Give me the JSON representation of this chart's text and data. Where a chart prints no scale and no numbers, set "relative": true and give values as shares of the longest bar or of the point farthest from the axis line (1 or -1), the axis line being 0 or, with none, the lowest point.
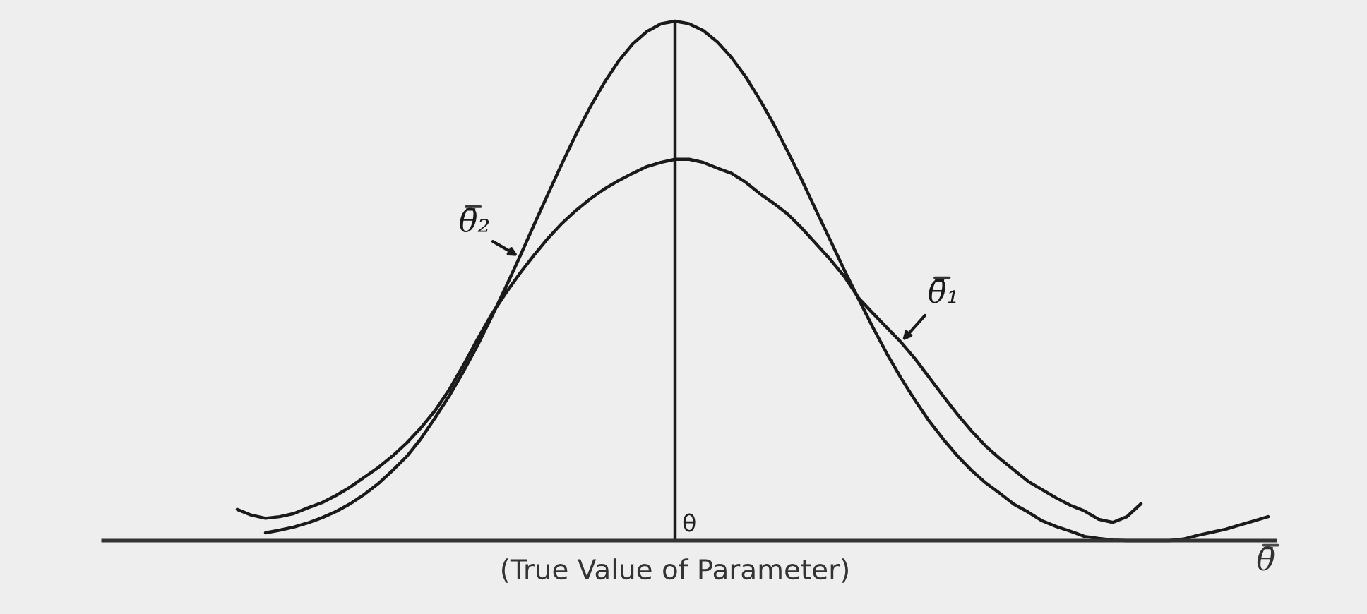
{
  "chart_data": {
    "type": "line",
    "relative": true,
    "xlabel": "θ̄",
    "categories": [
      null,
      null,
      null,
      null,
      null,
      null,
      null,
      null,
      null,
      null,
      null,
      null,
      null,
      null,
      null,
      null,
      null,
      null,
      null,
      null,
      null,
      null,
      null,
      null,
      null,
      null,
      null,
      null,
      null,
      null,
      null,
      null,
      null,
      null,
      null,
      null,
      null,
      null,
      null,
      null,
      null,
      null,
      null,
      null,
      null,
      null,
      null,
      null,
      null,
      null,
      null,
      null,
      null,
      null,
      null,
      null,
      null,
      null,
      null,
      null,
      null,
      null,
      null,
      null,
      null,
      null,
      null,
      null,
      null,
      null,
      null,
      null,
      null,
      null,
      null,
      null,
      null,
      null,
      null,
      null,
      null,
      null,
      null
    ],
    "series": [
      {
        "name": "θ̄₁",
        "color": "#1a1a1a",
        "values": [
          null,
          null,
          null,
          null,
          null,
          null,
          null,
          null,
          null,
          0.06,
          0.049,
          0.043,
          0.046,
          0.052,
          0.063,
          0.073,
          0.087,
          0.103,
          0.122,
          0.141,
          0.163,
          0.188,
          0.217,
          0.25,
          0.29,
          0.337,
          0.387,
          0.435,
          0.476,
          0.514,
          0.549,
          0.582,
          0.611,
          0.636,
          0.658,
          0.677,
          0.693,
          0.707,
          0.72,
          0.728,
          0.734,
          0.734,
          0.728,
          0.717,
          0.707,
          0.69,
          0.668,
          0.649,
          0.628,
          0.601,
          0.571,
          0.541,
          0.508,
          0.467,
          0.438,
          0.41,
          0.382,
          0.35,
          0.314,
          0.278,
          0.243,
          0.211,
          0.182,
          0.158,
          0.136,
          0.114,
          0.098,
          0.082,
          0.068,
          0.057,
          0.041,
          0.035,
          0.046,
          0.071,
          null,
          null,
          null,
          null,
          null,
          null,
          null,
          null,
          null
        ]
      },
      {
        "name": "θ̄₂",
        "color": "#1a1a1a",
        "values": [
          null,
          null,
          null,
          null,
          null,
          null,
          null,
          null,
          null,
          null,
          null,
          0.015,
          0.02,
          0.026,
          0.034,
          0.044,
          0.056,
          0.071,
          0.089,
          0.11,
          0.135,
          0.162,
          0.196,
          0.236,
          0.278,
          0.325,
          0.375,
          0.43,
          0.487,
          0.546,
          0.607,
          0.667,
          0.726,
          0.783,
          0.835,
          0.882,
          0.923,
          0.956,
          0.98,
          0.995,
          1.0,
          0.995,
          0.982,
          0.96,
          0.93,
          0.893,
          0.849,
          0.801,
          0.748,
          0.693,
          0.635,
          0.578,
          0.52,
          0.465,
          0.411,
          0.36,
          0.313,
          0.27,
          0.23,
          0.195,
          0.163,
          0.135,
          0.111,
          0.091,
          0.07,
          0.055,
          0.038,
          0.027,
          0.018,
          0.008,
          0.004,
          0.001,
          0,
          0,
          0,
          0,
          0.003,
          0.01,
          0.016,
          0.022,
          0.03,
          0.038,
          0.046
        ]
      }
    ],
    "annotations": [
      "θ",
      "(True Value of Parameter)"
    ]
  }
}
